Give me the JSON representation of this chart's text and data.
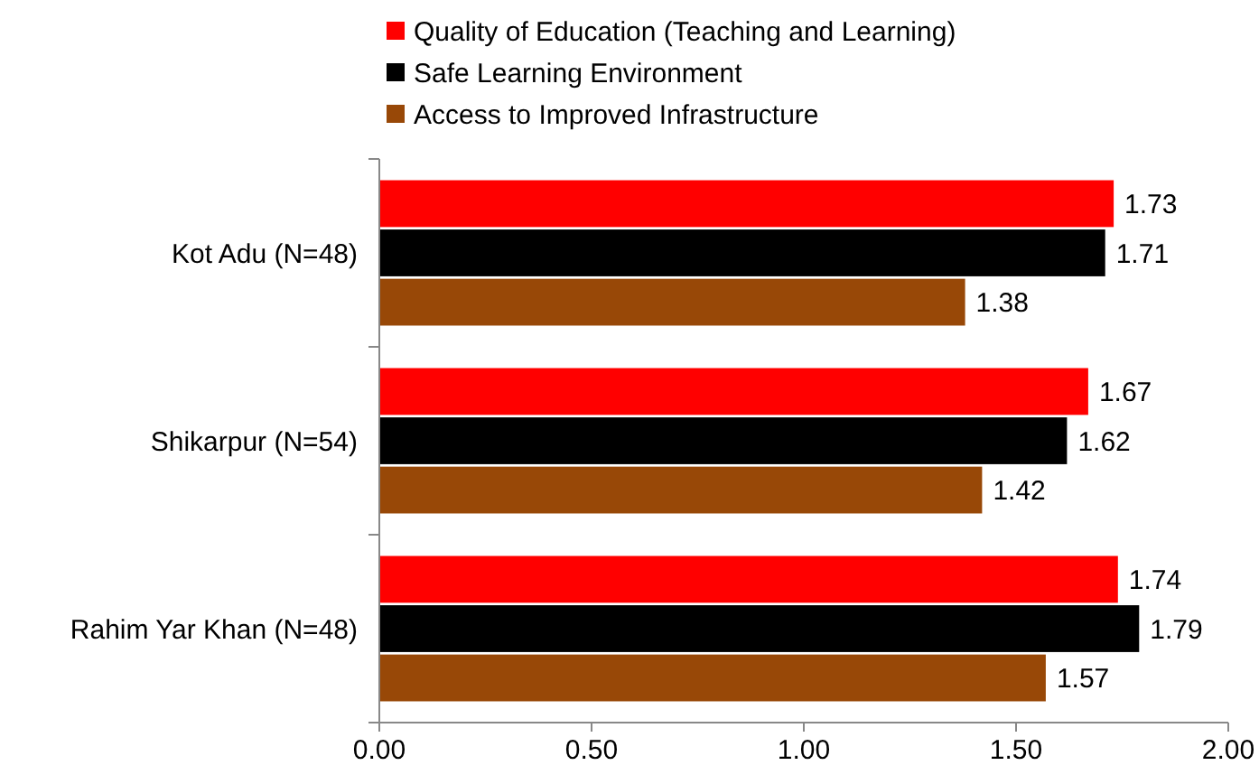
{
  "chart_data": {
    "type": "bar",
    "orientation": "horizontal",
    "categories": [
      "Kot Adu (N=48)",
      "Shikarpur (N=54)",
      "Rahim Yar Khan (N=48)"
    ],
    "series": [
      {
        "name": "Quality of Education (Teaching and Learning)",
        "color": "#ff0000",
        "values": [
          1.73,
          1.67,
          1.74
        ]
      },
      {
        "name": "Safe Learning Environment",
        "color": "#000000",
        "values": [
          1.71,
          1.62,
          1.79
        ]
      },
      {
        "name": "Access to Improved Infrastructure",
        "color": "#984807",
        "values": [
          1.38,
          1.42,
          1.57
        ]
      }
    ],
    "xlim": [
      0,
      2
    ],
    "xticks": [
      {
        "value": 0,
        "label": "0.00"
      },
      {
        "value": 0.5,
        "label": "0.50"
      },
      {
        "value": 1,
        "label": "1.00"
      },
      {
        "value": 1.5,
        "label": "1.50"
      },
      {
        "value": 2,
        "label": "2.00"
      }
    ],
    "data_labels": true,
    "grid": false,
    "legend": "top"
  }
}
